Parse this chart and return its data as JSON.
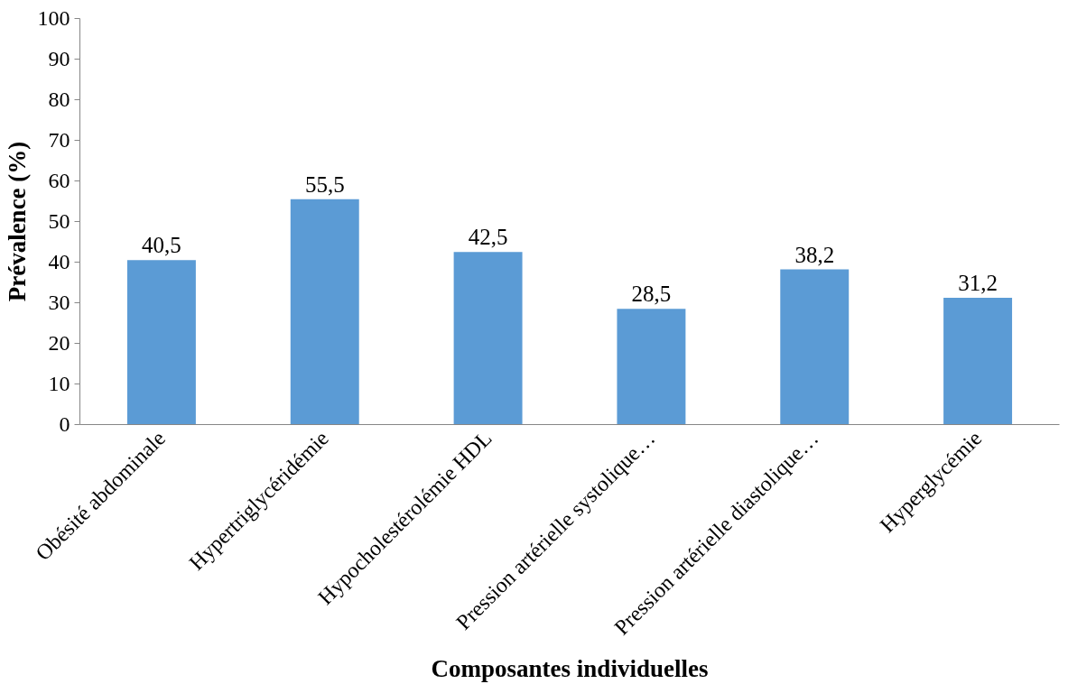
{
  "chart_data": {
    "type": "bar",
    "xlabel": "Composantes individuelles",
    "ylabel": "Prévalence (%)",
    "categories": [
      "Obésité abdominale",
      "Hypertriglycéridémie",
      "Hypocholestérolémie HDL",
      "Pression artérielle systolique…",
      "Pression artérielle diastolique…",
      "Hyperglycémie"
    ],
    "values": [
      40.5,
      55.5,
      42.5,
      28.5,
      38.2,
      31.2
    ],
    "value_labels": [
      "40,5",
      "55,5",
      "42,5",
      "28,5",
      "38,2",
      "31,2"
    ],
    "color": "#5b9bd5",
    "ylim": [
      0,
      100
    ],
    "yticks": [
      0,
      10,
      20,
      30,
      40,
      50,
      60,
      70,
      80,
      90,
      100
    ],
    "grid": false,
    "legend": false
  }
}
